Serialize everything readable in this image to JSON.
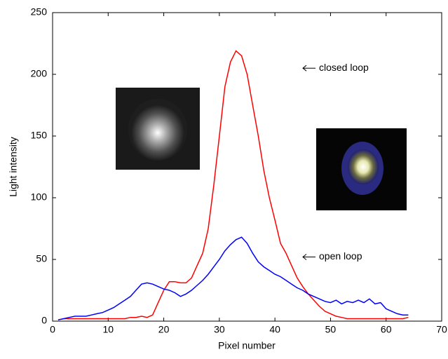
{
  "chart_data": {
    "type": "line",
    "x_label": "Pixel number",
    "y_label": "Light intensity",
    "x": [
      1,
      2,
      3,
      4,
      5,
      6,
      7,
      8,
      9,
      10,
      11,
      12,
      13,
      14,
      15,
      16,
      17,
      18,
      19,
      20,
      21,
      22,
      23,
      24,
      25,
      26,
      27,
      28,
      29,
      30,
      31,
      32,
      33,
      34,
      35,
      36,
      37,
      38,
      39,
      40,
      41,
      42,
      43,
      44,
      45,
      46,
      47,
      48,
      49,
      50,
      51,
      52,
      53,
      54,
      55,
      56,
      57,
      58,
      59,
      60,
      61,
      62,
      63,
      64
    ],
    "series": [
      {
        "name": "closed loop",
        "color": "#ff0000",
        "values": [
          1,
          2,
          2,
          2,
          2,
          2,
          2,
          2,
          2,
          2,
          2,
          2,
          2,
          3,
          3,
          4,
          3,
          5,
          15,
          25,
          32,
          32,
          31,
          31,
          35,
          45,
          55,
          75,
          110,
          150,
          190,
          210,
          219,
          215,
          200,
          175,
          150,
          122,
          100,
          82,
          63,
          55,
          45,
          35,
          28,
          22,
          17,
          12,
          8,
          6,
          4,
          3,
          2,
          2,
          2,
          2,
          2,
          2,
          2,
          2,
          2,
          2,
          2,
          3
        ]
      },
      {
        "name": "open loop",
        "color": "#0000ff",
        "values": [
          1,
          2,
          3,
          4,
          4,
          4,
          5,
          6,
          7,
          9,
          11,
          14,
          17,
          20,
          25,
          30,
          31,
          30,
          28,
          26,
          25,
          23,
          20,
          22,
          25,
          29,
          33,
          38,
          44,
          50,
          57,
          62,
          66,
          68,
          63,
          55,
          48,
          44,
          41,
          38,
          36,
          33,
          30,
          27,
          25,
          22,
          20,
          18,
          16,
          15,
          17,
          14,
          16,
          15,
          17,
          15,
          18,
          14,
          15,
          10,
          8,
          6,
          5,
          5
        ]
      }
    ],
    "annotation_y": [
      205,
      52
    ],
    "xlim": [
      0,
      70
    ],
    "ylim": [
      0,
      250
    ],
    "xticks": [
      0,
      10,
      20,
      30,
      40,
      50,
      60,
      70
    ],
    "yticks": [
      0,
      50,
      100,
      150,
      200,
      250
    ],
    "grid": false
  }
}
